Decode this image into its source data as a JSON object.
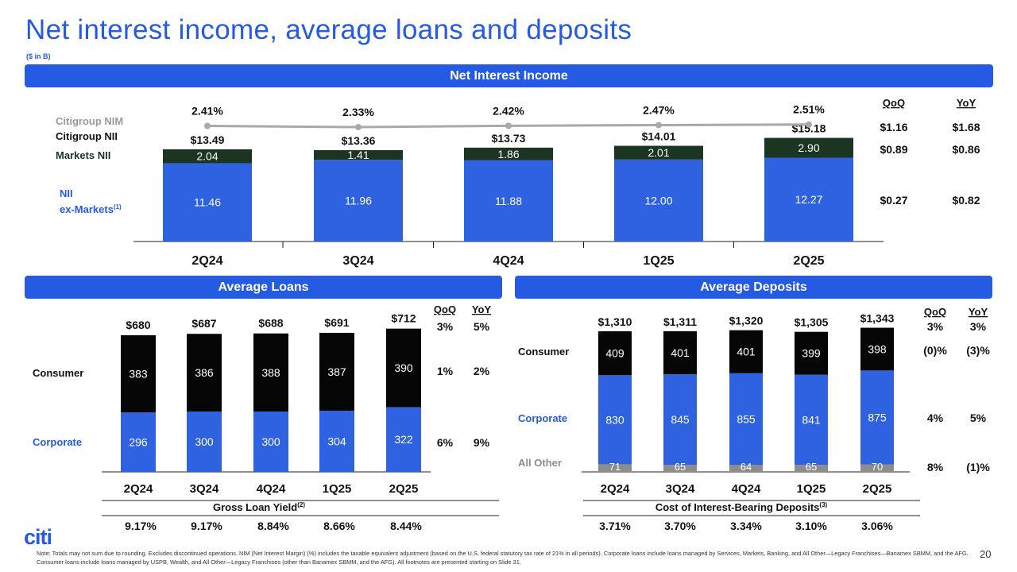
{
  "header": {
    "title": "Net interest income, average loans and deposits",
    "unit_note": "($ in B)"
  },
  "nii": {
    "banner": "Net Interest Income",
    "row_labels": {
      "nim": "Citigroup NIM",
      "nii": "Citigroup NII",
      "markets": "Markets NII",
      "ex_markets_1": "NII",
      "ex_markets_2": "ex-Markets",
      "ex_markets_sup": "(1)"
    },
    "change_headers": [
      "QoQ",
      "YoY"
    ],
    "changes": {
      "total": [
        "$1.16",
        "$1.68"
      ],
      "markets": [
        "$0.89",
        "$0.86"
      ],
      "ex_markets": [
        "$0.27",
        "$0.82"
      ]
    }
  },
  "loans": {
    "banner": "Average Loans",
    "row_labels": {
      "consumer": "Consumer",
      "corporate": "Corporate"
    },
    "change_headers": [
      "QoQ",
      "YoY"
    ],
    "changes": {
      "total": [
        "3%",
        "5%"
      ],
      "consumer": [
        "1%",
        "2%"
      ],
      "corporate": [
        "6%",
        "9%"
      ]
    },
    "yield_label": "Gross Loan Yield",
    "yield_sup": "(2)",
    "yields": [
      "9.17%",
      "9.17%",
      "8.84%",
      "8.66%",
      "8.44%"
    ]
  },
  "deposits": {
    "banner": "Average Deposits",
    "row_labels": {
      "consumer": "Consumer",
      "corporate": "Corporate",
      "other": "All Other"
    },
    "change_headers": [
      "QoQ",
      "YoY"
    ],
    "changes": {
      "total": [
        "3%",
        "3%"
      ],
      "consumer": [
        "(0)%",
        "(3)%"
      ],
      "corporate": [
        "4%",
        "5%"
      ],
      "other": [
        "8%",
        "(1)%"
      ]
    },
    "cost_label": "Cost of Interest-Bearing Deposits",
    "cost_sup": "(3)",
    "costs": [
      "3.71%",
      "3.70%",
      "3.34%",
      "3.10%",
      "3.06%"
    ]
  },
  "colors": {
    "brand_blue": "#255be3",
    "bar_blue": "#2e62e0",
    "markets_green": "#1c3523",
    "consumer_black": "#060606",
    "other_gray": "#8c8c8c",
    "nim_line": "#a9a9a9"
  },
  "chart_data": [
    {
      "type": "bar",
      "title": "Net Interest Income",
      "categories": [
        "2Q24",
        "3Q24",
        "4Q24",
        "1Q25",
        "2Q25"
      ],
      "series": [
        {
          "name": "NII ex-Markets",
          "values": [
            11.46,
            11.96,
            11.88,
            12.0,
            12.27
          ]
        },
        {
          "name": "Markets NII",
          "values": [
            2.04,
            1.41,
            1.86,
            2.01,
            2.9
          ]
        }
      ],
      "totals": [
        "$13.49",
        "$13.36",
        "$13.73",
        "$14.01",
        "$15.18"
      ],
      "line": {
        "name": "Citigroup NIM",
        "values": [
          2.41,
          2.33,
          2.42,
          2.47,
          2.51
        ],
        "labels": [
          "2.41%",
          "2.33%",
          "2.42%",
          "2.47%",
          "2.51%"
        ]
      }
    },
    {
      "type": "bar",
      "title": "Average Loans",
      "categories": [
        "2Q24",
        "3Q24",
        "4Q24",
        "1Q25",
        "2Q25"
      ],
      "series": [
        {
          "name": "Corporate",
          "values": [
            296,
            300,
            300,
            304,
            322
          ]
        },
        {
          "name": "Consumer",
          "values": [
            383,
            386,
            388,
            387,
            390
          ]
        }
      ],
      "totals": [
        "$680",
        "$687",
        "$688",
        "$691",
        "$712"
      ]
    },
    {
      "type": "bar",
      "title": "Average Deposits",
      "categories": [
        "2Q24",
        "3Q24",
        "4Q24",
        "1Q25",
        "2Q25"
      ],
      "series": [
        {
          "name": "All Other",
          "values": [
            71,
            65,
            64,
            65,
            70
          ]
        },
        {
          "name": "Corporate",
          "values": [
            830,
            845,
            855,
            841,
            875
          ]
        },
        {
          "name": "Consumer",
          "values": [
            409,
            401,
            401,
            399,
            398
          ]
        }
      ],
      "totals": [
        "$1,310",
        "$1,311",
        "$1,320",
        "$1,305",
        "$1,343"
      ]
    }
  ],
  "footer": {
    "note_label": "Note:",
    "note_text": "Totals may not sum due to rounding. Excludes discontinued operations. NIM (Net Interest Margin) (%) includes the taxable equivalent adjustment (based on the U.S. federal statutory tax rate of 21% in all periods). Corporate loans include loans managed by Services, Markets, Banking, and All Other—Legacy Franchises—Banamex SBMM, and the AFG. Consumer loans include loans managed by USPB, Wealth, and All Other—Legacy Franchises (other than Banamex SBMM, and the AFG). All footnotes are presented starting on Slide 31.",
    "page_number": "20",
    "logo_text": "citi"
  }
}
